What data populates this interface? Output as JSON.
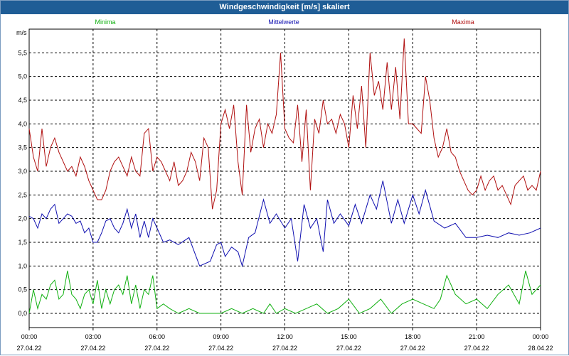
{
  "window": {
    "title": "Windgeschwindigkeit [m/s] skaliert"
  },
  "chart_data": {
    "type": "line",
    "title": "Windgeschwindigkeit [m/s] skaliert",
    "ylabel": "m/s",
    "xlabel": "",
    "ylim": [
      -0.3,
      6.0
    ],
    "xlim": [
      0,
      24
    ],
    "y_ticks": [
      "0,0",
      "0,5",
      "1,0",
      "1,5",
      "2,0",
      "2,5",
      "3,0",
      "3,5",
      "4,0",
      "4,5",
      "5,0",
      "5,5"
    ],
    "x_ticks": [
      {
        "time": "00:00",
        "date": "27.04.22"
      },
      {
        "time": "03:00",
        "date": "27.04.22"
      },
      {
        "time": "06:00",
        "date": "27.04.22"
      },
      {
        "time": "09:00",
        "date": "27.04.22"
      },
      {
        "time": "12:00",
        "date": "27.04.22"
      },
      {
        "time": "15:00",
        "date": "27.04.22"
      },
      {
        "time": "18:00",
        "date": "27.04.22"
      },
      {
        "time": "21:00",
        "date": "27.04.22"
      },
      {
        "time": "00:00",
        "date": "28.04.22"
      }
    ],
    "grid": true,
    "legend_position": "top",
    "series": [
      {
        "name": "Minima",
        "color": "#10b010",
        "x": [
          0,
          0.2,
          0.4,
          0.6,
          0.8,
          1,
          1.2,
          1.4,
          1.6,
          1.8,
          2,
          2.2,
          2.4,
          2.6,
          2.8,
          3,
          3.2,
          3.4,
          3.6,
          3.8,
          4,
          4.2,
          4.4,
          4.6,
          4.8,
          5,
          5.2,
          5.4,
          5.6,
          5.8,
          6,
          6.3,
          6.6,
          7,
          7.5,
          8,
          8.5,
          9,
          9.5,
          10,
          10.5,
          11,
          11.3,
          11.6,
          12,
          12.5,
          13,
          13.5,
          14,
          14.5,
          15,
          15.5,
          16,
          16.5,
          17,
          17.5,
          18,
          18.5,
          19,
          19.3,
          19.6,
          20,
          20.5,
          21,
          21.5,
          22,
          22.5,
          23,
          23.3,
          23.6,
          24
        ],
        "values": [
          0.0,
          0.5,
          0.1,
          0.4,
          0.3,
          0.6,
          0.7,
          0.3,
          0.4,
          0.9,
          0.4,
          0.3,
          0.1,
          0.4,
          0.5,
          0.2,
          0.7,
          0.1,
          0.5,
          0.2,
          0.5,
          0.6,
          0.4,
          0.8,
          0.2,
          0.6,
          0.1,
          0.5,
          0.4,
          0.8,
          0.1,
          0.2,
          0.1,
          0.0,
          0.1,
          0.0,
          0.0,
          0.0,
          0.1,
          0.0,
          0.1,
          0.0,
          0.2,
          0.0,
          0.1,
          0.0,
          0.1,
          0.2,
          0.0,
          0.1,
          0.3,
          0.0,
          0.1,
          0.3,
          0.0,
          0.2,
          0.3,
          0.2,
          0.1,
          0.3,
          0.8,
          0.4,
          0.2,
          0.3,
          0.1,
          0.4,
          0.6,
          0.2,
          0.9,
          0.4,
          0.6
        ]
      },
      {
        "name": "Mittelwerte",
        "color": "#1010b0",
        "x": [
          0,
          0.2,
          0.4,
          0.6,
          0.8,
          1,
          1.2,
          1.4,
          1.6,
          1.8,
          2,
          2.2,
          2.4,
          2.6,
          2.8,
          3,
          3.2,
          3.4,
          3.6,
          3.8,
          4,
          4.2,
          4.4,
          4.6,
          4.8,
          5,
          5.2,
          5.4,
          5.6,
          5.8,
          6,
          6.3,
          6.6,
          7,
          7.5,
          8,
          8.5,
          8.8,
          9,
          9.2,
          9.5,
          9.8,
          10,
          10.3,
          10.6,
          11,
          11.3,
          11.6,
          12,
          12.3,
          12.6,
          12.9,
          13.2,
          13.5,
          13.8,
          14,
          14.3,
          14.6,
          15,
          15.3,
          15.6,
          16,
          16.3,
          16.6,
          17,
          17.3,
          17.6,
          18,
          18.3,
          18.6,
          19,
          19.5,
          20,
          20.5,
          21,
          21.5,
          22,
          22.5,
          23,
          23.5,
          24
        ],
        "values": [
          2.05,
          2.0,
          1.8,
          2.1,
          2.0,
          2.2,
          2.3,
          1.9,
          2.0,
          2.1,
          2.05,
          1.9,
          1.95,
          1.7,
          1.8,
          1.5,
          1.5,
          1.7,
          1.95,
          2.0,
          1.8,
          1.7,
          1.9,
          2.2,
          1.8,
          2.1,
          1.6,
          1.95,
          1.6,
          2.0,
          1.8,
          1.5,
          1.55,
          1.45,
          1.6,
          1.0,
          1.1,
          1.45,
          1.5,
          1.2,
          1.4,
          1.3,
          1.0,
          1.6,
          1.7,
          2.4,
          1.9,
          2.1,
          1.8,
          2.0,
          1.1,
          2.3,
          1.8,
          2.0,
          1.3,
          2.4,
          1.9,
          2.1,
          1.85,
          2.3,
          1.9,
          2.5,
          2.2,
          2.8,
          1.9,
          2.4,
          1.9,
          2.5,
          2.1,
          2.6,
          1.95,
          1.8,
          1.9,
          1.6,
          1.6,
          1.65,
          1.6,
          1.7,
          1.65,
          1.7,
          1.8
        ]
      },
      {
        "name": "Maxima",
        "color": "#b01010",
        "x": [
          0,
          0.2,
          0.4,
          0.6,
          0.8,
          1,
          1.2,
          1.4,
          1.6,
          1.8,
          2,
          2.2,
          2.4,
          2.6,
          2.8,
          3,
          3.2,
          3.4,
          3.6,
          3.8,
          4,
          4.2,
          4.4,
          4.6,
          4.8,
          5,
          5.2,
          5.4,
          5.6,
          5.8,
          6,
          6.2,
          6.4,
          6.6,
          6.8,
          7,
          7.2,
          7.4,
          7.6,
          7.8,
          8,
          8.2,
          8.4,
          8.6,
          8.8,
          9,
          9.2,
          9.4,
          9.6,
          9.8,
          10,
          10.2,
          10.4,
          10.6,
          10.8,
          11,
          11.2,
          11.4,
          11.6,
          11.8,
          12,
          12.2,
          12.4,
          12.6,
          12.8,
          13,
          13.2,
          13.4,
          13.6,
          13.8,
          14,
          14.2,
          14.4,
          14.6,
          14.8,
          15,
          15.2,
          15.4,
          15.6,
          15.8,
          16,
          16.2,
          16.4,
          16.6,
          16.8,
          17,
          17.2,
          17.4,
          17.6,
          17.8,
          18,
          18.2,
          18.4,
          18.6,
          18.8,
          19,
          19.2,
          19.4,
          19.6,
          19.8,
          20,
          20.2,
          20.4,
          20.6,
          20.8,
          21,
          21.2,
          21.4,
          21.6,
          21.8,
          22,
          22.2,
          22.4,
          22.6,
          22.8,
          23,
          23.2,
          23.4,
          23.6,
          23.8,
          24
        ],
        "values": [
          3.9,
          3.3,
          3.0,
          3.9,
          3.1,
          3.5,
          3.7,
          3.4,
          3.2,
          3.0,
          3.1,
          2.9,
          3.3,
          3.1,
          2.8,
          2.6,
          2.4,
          2.4,
          2.6,
          3.0,
          3.2,
          3.3,
          3.1,
          2.9,
          3.3,
          3.0,
          2.9,
          3.8,
          3.9,
          3.0,
          3.3,
          3.2,
          3.0,
          2.8,
          3.2,
          2.7,
          2.8,
          3.0,
          3.4,
          3.2,
          2.8,
          3.7,
          3.5,
          2.2,
          2.6,
          4.0,
          4.3,
          3.9,
          4.4,
          3.2,
          2.5,
          4.4,
          3.4,
          3.9,
          4.1,
          3.5,
          4.0,
          3.8,
          4.2,
          5.5,
          3.9,
          3.7,
          3.6,
          4.4,
          3.2,
          4.3,
          2.6,
          4.1,
          3.8,
          4.5,
          4.0,
          4.1,
          3.8,
          4.2,
          4.0,
          3.5,
          4.6,
          3.9,
          4.8,
          3.5,
          5.5,
          4.6,
          4.9,
          4.3,
          5.3,
          4.3,
          5.2,
          4.1,
          5.8,
          4.0,
          4.0,
          3.9,
          3.8,
          5.0,
          4.5,
          3.7,
          3.3,
          3.5,
          3.9,
          3.4,
          3.3,
          3.0,
          2.8,
          2.6,
          2.5,
          2.6,
          2.9,
          2.6,
          2.8,
          2.9,
          2.6,
          2.7,
          2.5,
          2.3,
          2.7,
          2.8,
          2.9,
          2.6,
          2.7,
          2.6,
          3.0
        ]
      }
    ]
  }
}
